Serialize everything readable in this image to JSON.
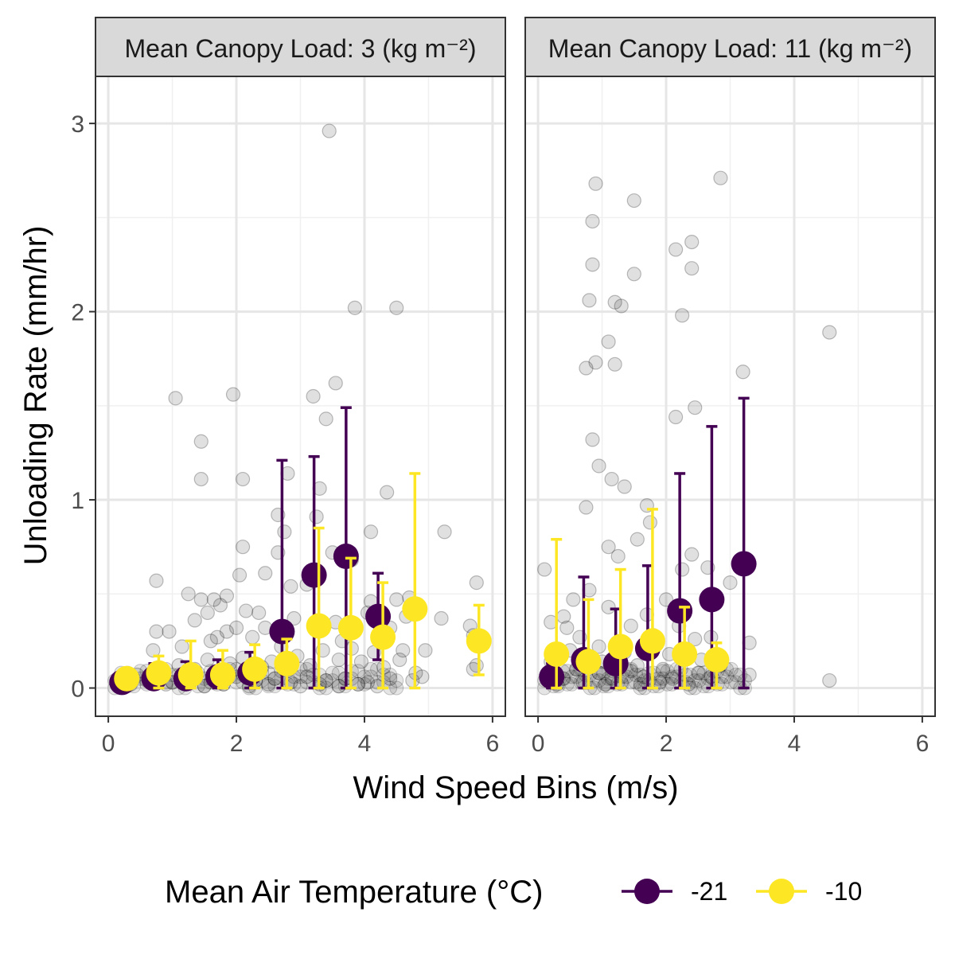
{
  "chart_data": {
    "type": "scatter",
    "xlabel": "Wind Speed Bins (m/s)",
    "ylabel": "Unloading Rate (mm/hr)",
    "xlim": [
      -0.2,
      6.2
    ],
    "ylim": [
      -0.15,
      3.25
    ],
    "x_ticks": [
      0,
      2,
      4,
      6
    ],
    "y_ticks": [
      0,
      1,
      2,
      3
    ],
    "grid": true,
    "legend": {
      "title": "Mean Air Temperature (°C)",
      "placement": "bottom",
      "entries": [
        {
          "label": "-21",
          "color": "#440154"
        },
        {
          "label": "-10",
          "color": "#FDE725"
        }
      ]
    },
    "colors": {
      "cold": "#440154",
      "warm": "#FDE725",
      "raw_points": "#000000",
      "strip_fill": "#d9d9d9"
    },
    "panels": [
      {
        "strip": "Mean Canopy Load: 3 (kg m⁻²)",
        "series": [
          {
            "name": "-21",
            "color": "#440154",
            "points": [
              {
                "x": 0.25,
                "y": 0.03,
                "lo": 0.0,
                "hi": 0.08
              },
              {
                "x": 0.75,
                "y": 0.05,
                "lo": 0.0,
                "hi": 0.13
              },
              {
                "x": 1.25,
                "y": 0.05,
                "lo": 0.0,
                "hi": 0.14
              },
              {
                "x": 1.75,
                "y": 0.06,
                "lo": 0.0,
                "hi": 0.15
              },
              {
                "x": 2.25,
                "y": 0.08,
                "lo": 0.0,
                "hi": 0.19
              },
              {
                "x": 2.75,
                "y": 0.3,
                "lo": 0.0,
                "hi": 1.21
              },
              {
                "x": 3.25,
                "y": 0.6,
                "lo": 0.0,
                "hi": 1.23
              },
              {
                "x": 3.75,
                "y": 0.7,
                "lo": 0.0,
                "hi": 1.49
              },
              {
                "x": 4.25,
                "y": 0.38,
                "lo": 0.15,
                "hi": 0.61
              }
            ]
          },
          {
            "name": "-10",
            "color": "#FDE725",
            "points": [
              {
                "x": 0.25,
                "y": 0.05,
                "lo": 0.0,
                "hi": 0.1
              },
              {
                "x": 0.75,
                "y": 0.08,
                "lo": 0.0,
                "hi": 0.17
              },
              {
                "x": 1.25,
                "y": 0.07,
                "lo": 0.0,
                "hi": 0.25
              },
              {
                "x": 1.75,
                "y": 0.07,
                "lo": 0.0,
                "hi": 0.2
              },
              {
                "x": 2.25,
                "y": 0.1,
                "lo": 0.0,
                "hi": 0.23
              },
              {
                "x": 2.75,
                "y": 0.13,
                "lo": 0.0,
                "hi": 0.26
              },
              {
                "x": 3.25,
                "y": 0.33,
                "lo": 0.0,
                "hi": 0.85
              },
              {
                "x": 3.75,
                "y": 0.32,
                "lo": 0.0,
                "hi": 0.69
              },
              {
                "x": 4.25,
                "y": 0.27,
                "lo": 0.0,
                "hi": 0.56
              },
              {
                "x": 4.75,
                "y": 0.42,
                "lo": 0.0,
                "hi": 1.14
              },
              {
                "x": 5.75,
                "y": 0.25,
                "lo": 0.07,
                "hi": 0.44
              }
            ]
          }
        ],
        "raw_points": [
          [
            3.45,
            2.96
          ],
          [
            3.85,
            2.02
          ],
          [
            4.5,
            2.02
          ],
          [
            1.05,
            1.54
          ],
          [
            1.95,
            1.56
          ],
          [
            3.2,
            1.55
          ],
          [
            3.55,
            1.62
          ],
          [
            3.4,
            1.43
          ],
          [
            1.45,
            1.31
          ],
          [
            1.45,
            1.11
          ],
          [
            2.1,
            1.11
          ],
          [
            4.35,
            1.04
          ],
          [
            2.8,
            1.14
          ],
          [
            3.3,
            1.06
          ],
          [
            2.65,
            0.92
          ],
          [
            3.25,
            0.91
          ],
          [
            4.1,
            0.83
          ],
          [
            5.25,
            0.83
          ],
          [
            2.75,
            0.83
          ],
          [
            2.1,
            0.75
          ],
          [
            2.65,
            0.72
          ],
          [
            3.5,
            0.72
          ],
          [
            3.8,
            0.68
          ],
          [
            0.75,
            0.57
          ],
          [
            5.75,
            0.56
          ],
          [
            2.05,
            0.6
          ],
          [
            2.45,
            0.61
          ],
          [
            2.85,
            0.54
          ],
          [
            3.1,
            0.55
          ],
          [
            1.25,
            0.5
          ],
          [
            1.45,
            0.47
          ],
          [
            1.65,
            0.47
          ],
          [
            1.85,
            0.49
          ],
          [
            1.75,
            0.44
          ],
          [
            4.5,
            0.47
          ],
          [
            4.7,
            0.48
          ],
          [
            4.1,
            0.46
          ],
          [
            1.55,
            0.4
          ],
          [
            2.15,
            0.41
          ],
          [
            2.35,
            0.4
          ],
          [
            4.05,
            0.4
          ],
          [
            5.2,
            0.37
          ],
          [
            5.65,
            0.33
          ],
          [
            0.75,
            0.3
          ],
          [
            0.95,
            0.3
          ],
          [
            1.85,
            0.3
          ],
          [
            2.0,
            0.32
          ],
          [
            1.7,
            0.27
          ],
          [
            4.6,
            0.2
          ],
          [
            4.95,
            0.2
          ],
          [
            3.65,
            0.25
          ],
          [
            5.75,
            0.12
          ],
          [
            5.7,
            0.1
          ],
          [
            4.8,
            0.08
          ],
          [
            4.9,
            0.06
          ],
          [
            0.2,
            0.05
          ],
          [
            0.45,
            0.07
          ],
          [
            0.85,
            0.09
          ],
          [
            1.1,
            0.12
          ],
          [
            1.35,
            0.1
          ],
          [
            1.55,
            0.15
          ],
          [
            1.9,
            0.13
          ],
          [
            2.1,
            0.16
          ],
          [
            2.4,
            0.11
          ],
          [
            2.55,
            0.14
          ],
          [
            2.95,
            0.17
          ],
          [
            3.15,
            0.12
          ],
          [
            3.6,
            0.15
          ],
          [
            3.95,
            0.14
          ],
          [
            4.3,
            0.11
          ],
          [
            0.6,
            0.04
          ],
          [
            1.0,
            0.03
          ],
          [
            1.3,
            0.05
          ],
          [
            1.6,
            0.03
          ],
          [
            2.0,
            0.06
          ],
          [
            2.3,
            0.04
          ],
          [
            2.6,
            0.05
          ],
          [
            2.85,
            0.03
          ],
          [
            3.1,
            0.06
          ],
          [
            3.4,
            0.04
          ],
          [
            3.7,
            0.05
          ],
          [
            4.05,
            0.03
          ],
          [
            4.4,
            0.05
          ],
          [
            4.75,
            0.04
          ],
          [
            0.35,
            0.02
          ],
          [
            0.9,
            0.02
          ],
          [
            1.2,
            0.02
          ],
          [
            1.5,
            0.01
          ],
          [
            1.8,
            0.02
          ],
          [
            2.2,
            0.01
          ],
          [
            2.5,
            0.02
          ],
          [
            3.0,
            0.01
          ],
          [
            3.3,
            0.02
          ],
          [
            3.6,
            0.01
          ],
          [
            3.9,
            0.02
          ],
          [
            4.2,
            0.01
          ],
          [
            0.7,
            0.2
          ],
          [
            1.15,
            0.22
          ],
          [
            1.6,
            0.25
          ],
          [
            2.25,
            0.27
          ],
          [
            2.7,
            0.22
          ],
          [
            3.35,
            0.2
          ],
          [
            3.8,
            0.21
          ],
          [
            4.15,
            0.19
          ],
          [
            4.4,
            0.32
          ],
          [
            4.55,
            0.15
          ],
          [
            5.7,
            0.28
          ],
          [
            4.65,
            0.38
          ],
          [
            3.55,
            0.35
          ],
          [
            2.9,
            0.37
          ],
          [
            2.45,
            0.32
          ],
          [
            1.35,
            0.36
          ]
        ]
      },
      {
        "strip": "Mean Canopy Load: 11 (kg m⁻²)",
        "series": [
          {
            "name": "-21",
            "color": "#440154",
            "points": [
              {
                "x": 0.25,
                "y": 0.06,
                "lo": 0.0,
                "hi": 0.13
              },
              {
                "x": 0.75,
                "y": 0.15,
                "lo": 0.0,
                "hi": 0.59
              },
              {
                "x": 1.25,
                "y": 0.13,
                "lo": 0.0,
                "hi": 0.42
              },
              {
                "x": 1.75,
                "y": 0.21,
                "lo": 0.0,
                "hi": 0.65
              },
              {
                "x": 2.25,
                "y": 0.41,
                "lo": 0.0,
                "hi": 1.14
              },
              {
                "x": 2.75,
                "y": 0.47,
                "lo": 0.0,
                "hi": 1.39
              },
              {
                "x": 3.25,
                "y": 0.66,
                "lo": 0.0,
                "hi": 1.54
              }
            ]
          },
          {
            "name": "-10",
            "color": "#FDE725",
            "points": [
              {
                "x": 0.25,
                "y": 0.18,
                "lo": 0.0,
                "hi": 0.79
              },
              {
                "x": 0.75,
                "y": 0.14,
                "lo": 0.0,
                "hi": 0.47
              },
              {
                "x": 1.25,
                "y": 0.22,
                "lo": 0.0,
                "hi": 0.63
              },
              {
                "x": 1.75,
                "y": 0.25,
                "lo": 0.0,
                "hi": 0.95
              },
              {
                "x": 2.25,
                "y": 0.18,
                "lo": 0.0,
                "hi": 0.43
              },
              {
                "x": 2.75,
                "y": 0.15,
                "lo": 0.0,
                "hi": 0.24
              }
            ]
          }
        ],
        "raw_points": [
          [
            2.85,
            2.71
          ],
          [
            0.9,
            2.68
          ],
          [
            1.5,
            2.59
          ],
          [
            0.85,
            2.48
          ],
          [
            2.4,
            2.37
          ],
          [
            2.15,
            2.33
          ],
          [
            0.85,
            2.25
          ],
          [
            2.4,
            2.23
          ],
          [
            1.5,
            2.2
          ],
          [
            0.8,
            2.06
          ],
          [
            1.2,
            2.05
          ],
          [
            1.3,
            2.03
          ],
          [
            2.25,
            1.98
          ],
          [
            4.55,
            1.89
          ],
          [
            1.1,
            1.84
          ],
          [
            0.9,
            1.73
          ],
          [
            1.2,
            1.72
          ],
          [
            0.75,
            1.7
          ],
          [
            3.2,
            1.68
          ],
          [
            2.45,
            1.49
          ],
          [
            2.15,
            1.44
          ],
          [
            0.85,
            1.32
          ],
          [
            0.95,
            1.18
          ],
          [
            1.15,
            1.11
          ],
          [
            1.35,
            1.07
          ],
          [
            1.7,
            0.97
          ],
          [
            0.75,
            0.96
          ],
          [
            1.75,
            0.88
          ],
          [
            1.55,
            0.79
          ],
          [
            1.1,
            0.75
          ],
          [
            1.25,
            0.7
          ],
          [
            2.4,
            0.71
          ],
          [
            2.25,
            0.63
          ],
          [
            0.1,
            0.63
          ],
          [
            2.65,
            0.64
          ],
          [
            3.0,
            0.56
          ],
          [
            2.0,
            0.47
          ],
          [
            0.55,
            0.47
          ],
          [
            0.8,
            0.52
          ],
          [
            1.1,
            0.43
          ],
          [
            0.2,
            0.35
          ],
          [
            0.4,
            0.38
          ],
          [
            1.45,
            0.33
          ],
          [
            2.2,
            0.33
          ],
          [
            2.45,
            0.26
          ],
          [
            2.7,
            0.27
          ],
          [
            3.3,
            0.24
          ],
          [
            3.3,
            0.07
          ],
          [
            0.15,
            0.08
          ],
          [
            0.4,
            0.05
          ],
          [
            0.6,
            0.1
          ],
          [
            0.95,
            0.08
          ],
          [
            1.15,
            0.05
          ],
          [
            1.45,
            0.09
          ],
          [
            1.65,
            0.06
          ],
          [
            1.95,
            0.1
          ],
          [
            2.1,
            0.05
          ],
          [
            2.5,
            0.08
          ],
          [
            2.7,
            0.06
          ],
          [
            0.3,
            0.02
          ],
          [
            0.7,
            0.03
          ],
          [
            1.05,
            0.02
          ],
          [
            1.3,
            0.03
          ],
          [
            1.6,
            0.02
          ],
          [
            1.9,
            0.03
          ],
          [
            2.35,
            0.02
          ],
          [
            0.5,
            0.2
          ],
          [
            0.95,
            0.22
          ],
          [
            1.35,
            0.19
          ],
          [
            1.8,
            0.28
          ],
          [
            2.05,
            0.18
          ],
          [
            2.55,
            0.15
          ],
          [
            0.2,
            0.14
          ],
          [
            0.65,
            0.27
          ],
          [
            1.55,
            0.12
          ],
          [
            4.55,
            0.04
          ],
          [
            2.85,
            0.12
          ],
          [
            1.0,
            0.14
          ],
          [
            1.7,
            0.39
          ],
          [
            0.45,
            0.32
          ]
        ]
      }
    ]
  }
}
